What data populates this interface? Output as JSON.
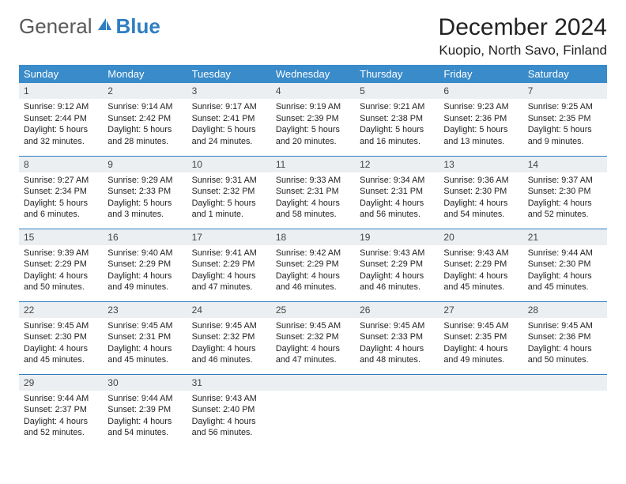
{
  "logo": {
    "general": "General",
    "blue": "Blue"
  },
  "title": "December 2024",
  "location": "Kuopio, North Savo, Finland",
  "colors": {
    "header_bg": "#3a8bc9",
    "header_fg": "#ffffff",
    "daynum_bg": "#eceff1",
    "row_border": "#2f7ec2",
    "logo_general": "#5a5a5a",
    "logo_blue": "#2f7ec2"
  },
  "weekdays": [
    "Sunday",
    "Monday",
    "Tuesday",
    "Wednesday",
    "Thursday",
    "Friday",
    "Saturday"
  ],
  "weeks": [
    [
      {
        "n": "1",
        "sr": "9:12 AM",
        "ss": "2:44 PM",
        "dl": "5 hours and 32 minutes."
      },
      {
        "n": "2",
        "sr": "9:14 AM",
        "ss": "2:42 PM",
        "dl": "5 hours and 28 minutes."
      },
      {
        "n": "3",
        "sr": "9:17 AM",
        "ss": "2:41 PM",
        "dl": "5 hours and 24 minutes."
      },
      {
        "n": "4",
        "sr": "9:19 AM",
        "ss": "2:39 PM",
        "dl": "5 hours and 20 minutes."
      },
      {
        "n": "5",
        "sr": "9:21 AM",
        "ss": "2:38 PM",
        "dl": "5 hours and 16 minutes."
      },
      {
        "n": "6",
        "sr": "9:23 AM",
        "ss": "2:36 PM",
        "dl": "5 hours and 13 minutes."
      },
      {
        "n": "7",
        "sr": "9:25 AM",
        "ss": "2:35 PM",
        "dl": "5 hours and 9 minutes."
      }
    ],
    [
      {
        "n": "8",
        "sr": "9:27 AM",
        "ss": "2:34 PM",
        "dl": "5 hours and 6 minutes."
      },
      {
        "n": "9",
        "sr": "9:29 AM",
        "ss": "2:33 PM",
        "dl": "5 hours and 3 minutes."
      },
      {
        "n": "10",
        "sr": "9:31 AM",
        "ss": "2:32 PM",
        "dl": "5 hours and 1 minute."
      },
      {
        "n": "11",
        "sr": "9:33 AM",
        "ss": "2:31 PM",
        "dl": "4 hours and 58 minutes."
      },
      {
        "n": "12",
        "sr": "9:34 AM",
        "ss": "2:31 PM",
        "dl": "4 hours and 56 minutes."
      },
      {
        "n": "13",
        "sr": "9:36 AM",
        "ss": "2:30 PM",
        "dl": "4 hours and 54 minutes."
      },
      {
        "n": "14",
        "sr": "9:37 AM",
        "ss": "2:30 PM",
        "dl": "4 hours and 52 minutes."
      }
    ],
    [
      {
        "n": "15",
        "sr": "9:39 AM",
        "ss": "2:29 PM",
        "dl": "4 hours and 50 minutes."
      },
      {
        "n": "16",
        "sr": "9:40 AM",
        "ss": "2:29 PM",
        "dl": "4 hours and 49 minutes."
      },
      {
        "n": "17",
        "sr": "9:41 AM",
        "ss": "2:29 PM",
        "dl": "4 hours and 47 minutes."
      },
      {
        "n": "18",
        "sr": "9:42 AM",
        "ss": "2:29 PM",
        "dl": "4 hours and 46 minutes."
      },
      {
        "n": "19",
        "sr": "9:43 AM",
        "ss": "2:29 PM",
        "dl": "4 hours and 46 minutes."
      },
      {
        "n": "20",
        "sr": "9:43 AM",
        "ss": "2:29 PM",
        "dl": "4 hours and 45 minutes."
      },
      {
        "n": "21",
        "sr": "9:44 AM",
        "ss": "2:30 PM",
        "dl": "4 hours and 45 minutes."
      }
    ],
    [
      {
        "n": "22",
        "sr": "9:45 AM",
        "ss": "2:30 PM",
        "dl": "4 hours and 45 minutes."
      },
      {
        "n": "23",
        "sr": "9:45 AM",
        "ss": "2:31 PM",
        "dl": "4 hours and 45 minutes."
      },
      {
        "n": "24",
        "sr": "9:45 AM",
        "ss": "2:32 PM",
        "dl": "4 hours and 46 minutes."
      },
      {
        "n": "25",
        "sr": "9:45 AM",
        "ss": "2:32 PM",
        "dl": "4 hours and 47 minutes."
      },
      {
        "n": "26",
        "sr": "9:45 AM",
        "ss": "2:33 PM",
        "dl": "4 hours and 48 minutes."
      },
      {
        "n": "27",
        "sr": "9:45 AM",
        "ss": "2:35 PM",
        "dl": "4 hours and 49 minutes."
      },
      {
        "n": "28",
        "sr": "9:45 AM",
        "ss": "2:36 PM",
        "dl": "4 hours and 50 minutes."
      }
    ],
    [
      {
        "n": "29",
        "sr": "9:44 AM",
        "ss": "2:37 PM",
        "dl": "4 hours and 52 minutes."
      },
      {
        "n": "30",
        "sr": "9:44 AM",
        "ss": "2:39 PM",
        "dl": "4 hours and 54 minutes."
      },
      {
        "n": "31",
        "sr": "9:43 AM",
        "ss": "2:40 PM",
        "dl": "4 hours and 56 minutes."
      },
      null,
      null,
      null,
      null
    ]
  ],
  "labels": {
    "sunrise": "Sunrise:",
    "sunset": "Sunset:",
    "daylight": "Daylight:"
  }
}
